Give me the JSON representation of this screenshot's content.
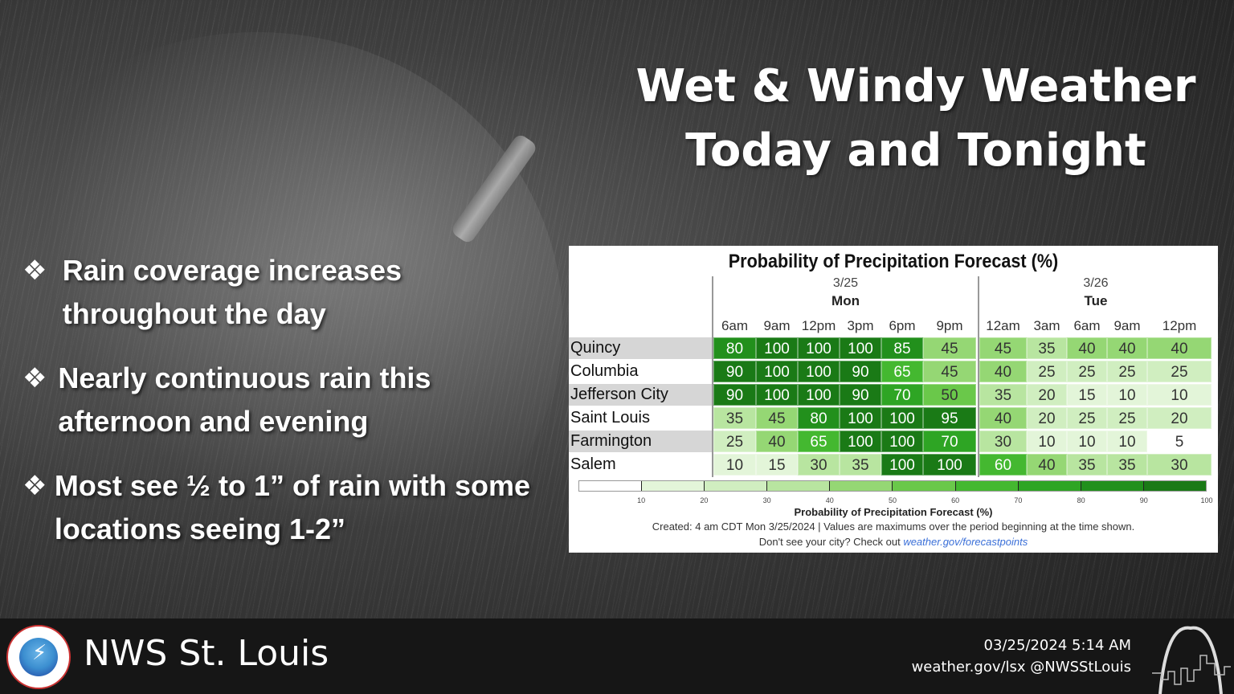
{
  "title": {
    "line1": "Wet & Windy Weather",
    "line2": "Today and Tonight"
  },
  "bullets": [
    {
      "icon": "diamond-bullet-icon",
      "text": "Rain coverage increases throughout the day"
    },
    {
      "icon": "diamond-bullet-icon",
      "text": "Nearly continuous rain this afternoon and evening"
    },
    {
      "icon": "diamond-bullet-icon",
      "text": "Most see ½ to 1” of rain with some locations seeing 1-2”"
    }
  ],
  "chart_data": {
    "type": "heatmap",
    "title": "Probability of Precipitation Forecast (%)",
    "days": [
      {
        "date": "3/25",
        "name": "Mon",
        "times": [
          "6am",
          "9am",
          "12pm",
          "3pm",
          "6pm",
          "9pm"
        ]
      },
      {
        "date": "3/26",
        "name": "Tue",
        "times": [
          "12am",
          "3am",
          "6am",
          "9am",
          "12pm"
        ]
      }
    ],
    "columns": [
      "6am",
      "9am",
      "12pm",
      "3pm",
      "6pm",
      "9pm",
      "12am",
      "3am",
      "6am",
      "9am",
      "12pm"
    ],
    "rows": [
      {
        "location": "Quincy",
        "values": [
          80,
          100,
          100,
          100,
          85,
          45,
          45,
          35,
          40,
          40,
          40
        ]
      },
      {
        "location": "Columbia",
        "values": [
          90,
          100,
          100,
          90,
          65,
          45,
          40,
          25,
          25,
          25,
          25
        ]
      },
      {
        "location": "Jefferson City",
        "values": [
          90,
          100,
          100,
          90,
          70,
          50,
          35,
          20,
          15,
          10,
          10
        ]
      },
      {
        "location": "Saint Louis",
        "values": [
          35,
          45,
          80,
          100,
          100,
          95,
          40,
          20,
          25,
          25,
          20
        ]
      },
      {
        "location": "Farmington",
        "values": [
          25,
          40,
          65,
          100,
          100,
          70,
          30,
          10,
          10,
          10,
          5
        ]
      },
      {
        "location": "Salem",
        "values": [
          10,
          15,
          30,
          35,
          100,
          100,
          60,
          40,
          35,
          35,
          30
        ]
      }
    ],
    "colorbar": {
      "label": "Probability of Precipitation Forecast (%)",
      "ticks": [
        10,
        20,
        30,
        40,
        50,
        60,
        70,
        80,
        90,
        100
      ],
      "range": [
        0,
        100
      ],
      "colors": [
        "#ffffff",
        "#e3f5d9",
        "#d0eec0",
        "#b8e5a0",
        "#95d774",
        "#6ac84a",
        "#44b830",
        "#2ea524",
        "#22901c",
        "#1a7a16"
      ]
    },
    "created": "Created: 4 am CDT Mon 3/25/2024  |  Values are maximums over the period beginning at the time shown.",
    "cta_text": "Don't see your city? Check out ",
    "cta_link": "weather.gov/forecastpoints"
  },
  "footer": {
    "office": "NWS St. Louis",
    "datetime": "03/25/2024 5:14 AM",
    "links": "weather.gov/lsx @NWSStLouis",
    "logo_left": "nws-logo-icon",
    "logo_right": "gateway-arch-skyline-icon"
  }
}
